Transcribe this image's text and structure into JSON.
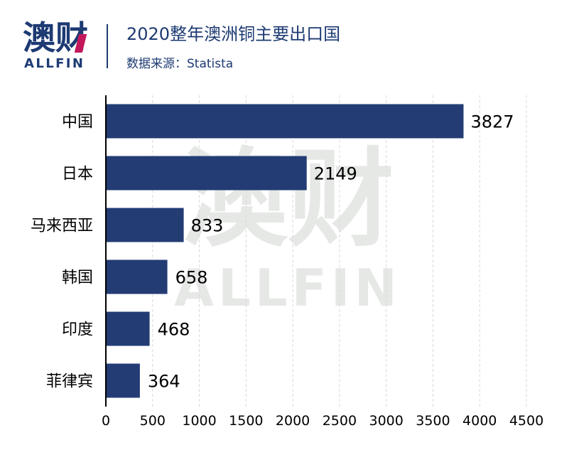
{
  "brand": {
    "logo_cn": "澳财",
    "logo_en": "ALLFIN",
    "watermark_cn": "澳财",
    "watermark_en": "ALLFIN"
  },
  "header": {
    "title": "2020整年澳洲铜主要出口国",
    "source": "数据来源：Statista"
  },
  "colors": {
    "bar": "#233c74",
    "axis": "#000000",
    "grid": "#d9d9d9",
    "brand": "#1d3a73",
    "brand_accent": "#c2185b",
    "watermark": "#e6e8e6"
  },
  "chart_data": {
    "type": "bar",
    "orientation": "horizontal",
    "title": "2020整年澳洲铜主要出口国",
    "categories": [
      "中国",
      "日本",
      "马来西亚",
      "韩国",
      "印度",
      "菲律宾"
    ],
    "values": [
      3827,
      2149,
      833,
      658,
      468,
      364
    ],
    "xlim": [
      0,
      4500
    ],
    "xticks": [
      0,
      500,
      1000,
      1500,
      2000,
      2500,
      3000,
      3500,
      4000,
      4500
    ],
    "xtick_labels": [
      "0",
      "500",
      "1000",
      "1500",
      "2000",
      "2500",
      "3000",
      "3500",
      "4000",
      "4500"
    ],
    "grid": "vertical dashed",
    "data_labels": true,
    "xlabel": "",
    "ylabel": ""
  }
}
